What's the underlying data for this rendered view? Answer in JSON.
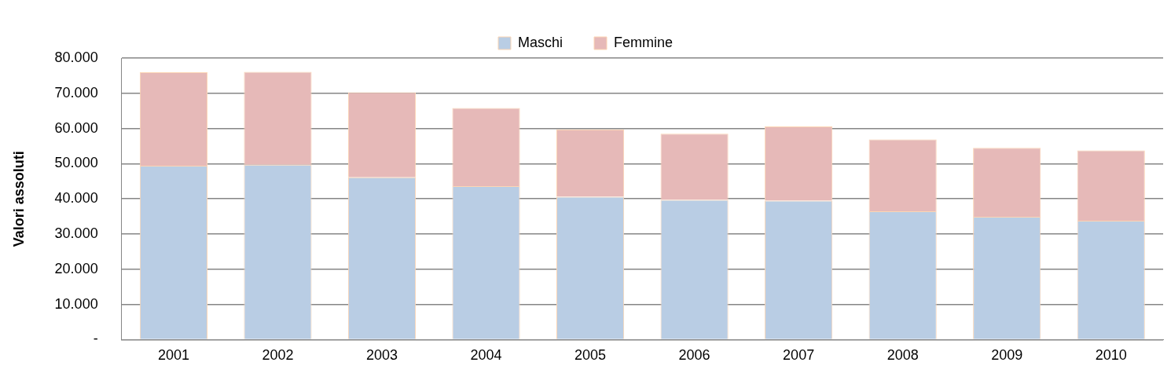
{
  "chart_data": {
    "type": "bar",
    "ylabel": "Valori assoluti",
    "categories": [
      "2001",
      "2002",
      "2003",
      "2004",
      "2005",
      "2006",
      "2007",
      "2008",
      "2009",
      "2010"
    ],
    "stacked": true,
    "series": [
      {
        "name": "Maschi",
        "color": "#b9cde4",
        "values": [
          49400,
          49700,
          46100,
          43600,
          40600,
          39700,
          39500,
          36500,
          34900,
          33800
        ]
      },
      {
        "name": "Femmine",
        "color": "#e6b9b8",
        "values": [
          26600,
          26400,
          24200,
          22200,
          19100,
          18800,
          21100,
          20400,
          19600,
          20000
        ]
      }
    ],
    "ylim": [
      0,
      80000
    ],
    "yticks": [
      {
        "value": 0,
        "label": "-"
      },
      {
        "value": 10000,
        "label": "10.000"
      },
      {
        "value": 20000,
        "label": "20.000"
      },
      {
        "value": 30000,
        "label": "30.000"
      },
      {
        "value": 40000,
        "label": "40.000"
      },
      {
        "value": 50000,
        "label": "50.000"
      },
      {
        "value": 60000,
        "label": "60.000"
      },
      {
        "value": 70000,
        "label": "70.000"
      },
      {
        "value": 80000,
        "label": "80.000"
      }
    ],
    "grid": "y",
    "legend": "top"
  }
}
